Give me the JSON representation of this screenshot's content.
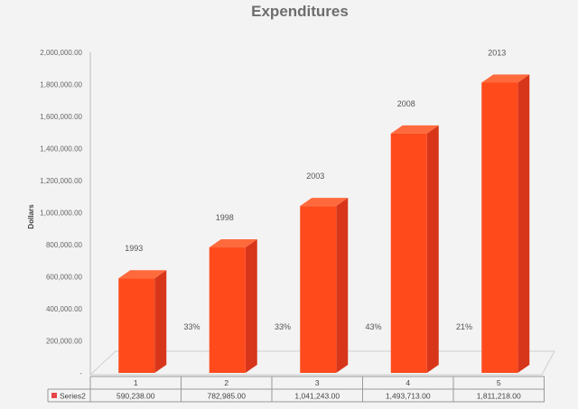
{
  "chart_data": {
    "type": "bar",
    "title": "Expenditures",
    "ylabel": "Dollars",
    "xlabel": "",
    "ylim": [
      0,
      2000000
    ],
    "y_ticks": [
      "-",
      "200,000.00",
      "400,000.00",
      "600,000.00",
      "800,000.00",
      "1,000,000.00",
      "1,200,000.00",
      "1,400,000.00",
      "1,600,000.00",
      "1,800,000.00",
      "2,000,000.00"
    ],
    "categories": [
      "1",
      "2",
      "3",
      "4",
      "5"
    ],
    "series": [
      {
        "name": "Series2",
        "values": [
          590238,
          782985,
          1041243,
          1493713,
          1811218
        ],
        "value_labels": [
          "590,238.00",
          "782,985.00",
          "1,041,243.00",
          "1,493,713.00",
          "1,811,218.00"
        ]
      }
    ],
    "bar_annotations": [
      "1993",
      "1998",
      "2003",
      "2008",
      "2013"
    ],
    "growth_annotations": [
      "33%",
      "33%",
      "43%",
      "21%"
    ],
    "grid": false,
    "legend": "data-table",
    "colors": {
      "bar_front": "#ff4a1c",
      "bar_side": "#d8361a",
      "bar_top": "#ff6a3d",
      "legend_swatch": "#e8444a"
    }
  }
}
